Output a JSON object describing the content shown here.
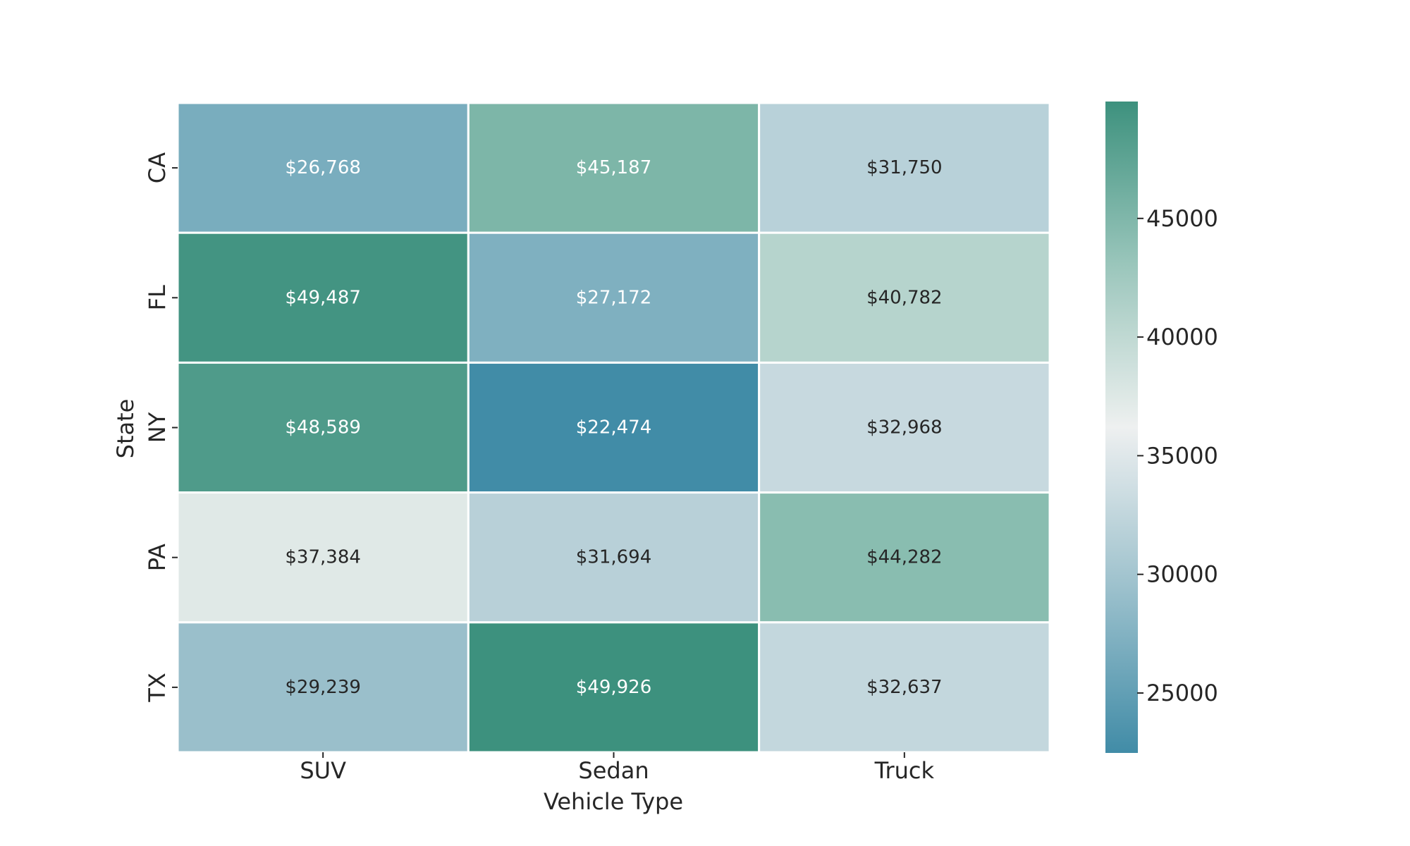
{
  "chart_data": {
    "type": "heatmap",
    "title": "",
    "xlabel": "Vehicle Type",
    "ylabel": "State",
    "x_categories": [
      "SUV",
      "Sedan",
      "Truck"
    ],
    "y_categories": [
      "CA",
      "FL",
      "NY",
      "PA",
      "TX"
    ],
    "values": [
      [
        26768,
        45187,
        31750
      ],
      [
        49487,
        27172,
        40782
      ],
      [
        48589,
        22474,
        32968
      ],
      [
        37384,
        31694,
        44282
      ],
      [
        29239,
        49926,
        32637
      ]
    ],
    "cell_labels": [
      [
        "$26,768",
        "$45,187",
        "$31,750"
      ],
      [
        "$49,487",
        "$27,172",
        "$40,782"
      ],
      [
        "$48,589",
        "$22,474",
        "$32,968"
      ],
      [
        "$37,384",
        "$31,694",
        "$44,282"
      ],
      [
        "$29,239",
        "$49,926",
        "$32,637"
      ]
    ],
    "colorbar": {
      "vmin": 22474,
      "vmax": 49926,
      "ticks": [
        25000,
        30000,
        35000,
        40000,
        45000
      ],
      "tick_labels": [
        "25000",
        "30000",
        "35000",
        "40000",
        "45000"
      ],
      "colors": {
        "low": "#418ca7",
        "low_mid": "#9bc0cc",
        "center": "#eef0f0",
        "high_mid": "#9ac6bb",
        "high": "#3d917e"
      }
    },
    "grid": false,
    "legend": "colorbar-right"
  }
}
